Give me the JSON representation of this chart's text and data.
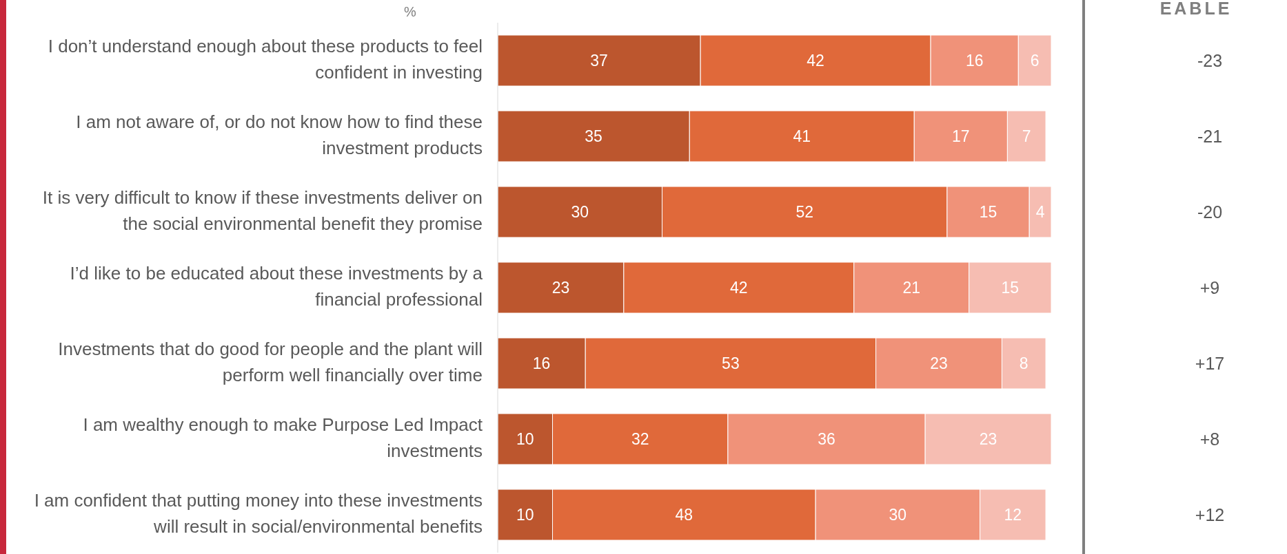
{
  "chart_data": {
    "type": "bar",
    "orientation": "horizontal",
    "stacked": true,
    "data_labels": true,
    "xlabel": "%",
    "categories": [
      "I don’t understand enough about these products to feel confident in investing",
      "I am not aware of, or do not know how to find these investment products",
      "It is very difficult to know if these investments deliver on the social environmental benefit they promise",
      "I’d like to be educated about these investments by a financial professional",
      "Investments that do good for people and the plant will perform well financially over time",
      "I am wealthy enough to make Purpose Led Impact investments",
      "I am confident that putting money into these investments will result in social/environmental benefits"
    ],
    "series": [
      {
        "color": "#bc562e",
        "values": [
          37,
          35,
          30,
          23,
          16,
          10,
          10
        ]
      },
      {
        "color": "#e0693a",
        "values": [
          42,
          41,
          52,
          42,
          53,
          32,
          48
        ]
      },
      {
        "color": "#f09279",
        "values": [
          16,
          17,
          15,
          21,
          23,
          36,
          30
        ]
      },
      {
        "color": "#f6bdb2",
        "values": [
          6,
          7,
          4,
          15,
          8,
          23,
          12
        ]
      }
    ],
    "annotations": [
      "EABLE",
      "-23",
      "-21",
      "-20",
      "+9",
      "+17",
      "+8",
      "+12"
    ]
  }
}
